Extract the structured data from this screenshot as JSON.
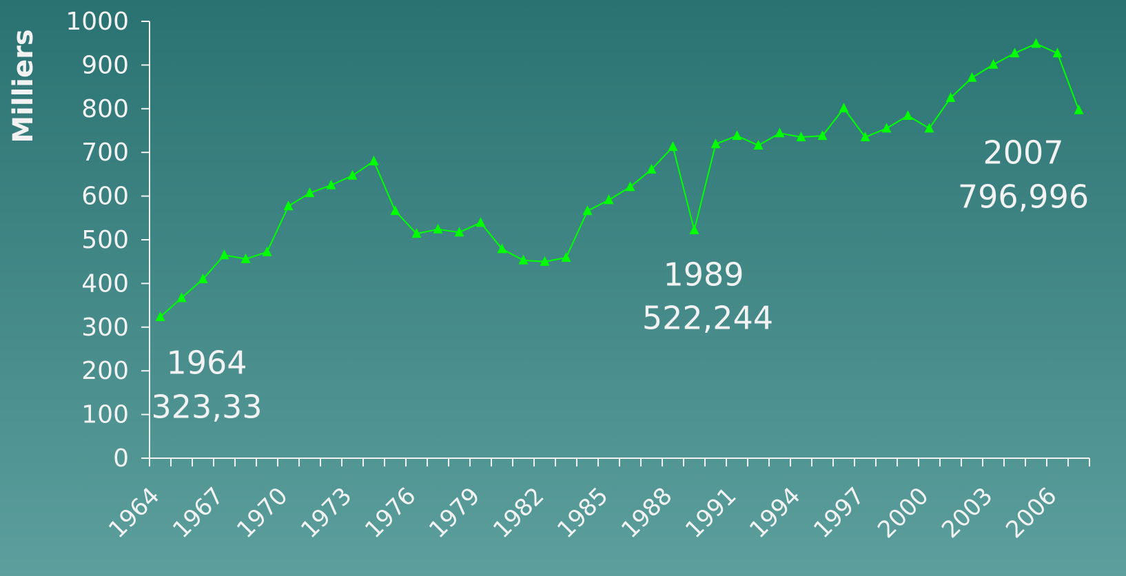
{
  "chart_data": {
    "type": "line",
    "y_label": "Milliers",
    "categories": [
      "1964",
      null,
      null,
      "1967",
      null,
      null,
      "1970",
      null,
      null,
      "1973",
      null,
      null,
      "1976",
      null,
      null,
      "1979",
      null,
      null,
      "1982",
      null,
      null,
      "1985",
      null,
      null,
      "1988",
      null,
      null,
      "1991",
      null,
      null,
      "1994",
      null,
      null,
      "1997",
      null,
      null,
      "2000",
      null,
      null,
      "2003",
      null,
      null,
      "2006",
      null
    ],
    "series": [
      {
        "color": "#00ff00",
        "values": [
          323.33,
          367,
          410,
          465,
          456,
          472,
          577,
          607,
          625,
          647,
          680,
          566,
          514,
          524,
          517,
          539,
          479,
          453,
          450,
          459,
          566,
          591,
          621,
          661,
          713,
          522.244,
          719,
          738,
          716,
          744,
          735,
          738,
          801,
          735,
          755,
          784,
          755,
          825,
          871,
          901,
          927,
          949,
          927,
          796.996
        ]
      }
    ],
    "annotations": [
      {
        "label": "1964",
        "value": "323,33"
      },
      {
        "label": "1989",
        "value": "522,244"
      },
      {
        "label": "2007",
        "value": "796,996"
      }
    ],
    "ylim": [
      0,
      1000
    ],
    "yticks": [
      0,
      100,
      200,
      300,
      400,
      500,
      600,
      700,
      800,
      900,
      1000
    ]
  }
}
